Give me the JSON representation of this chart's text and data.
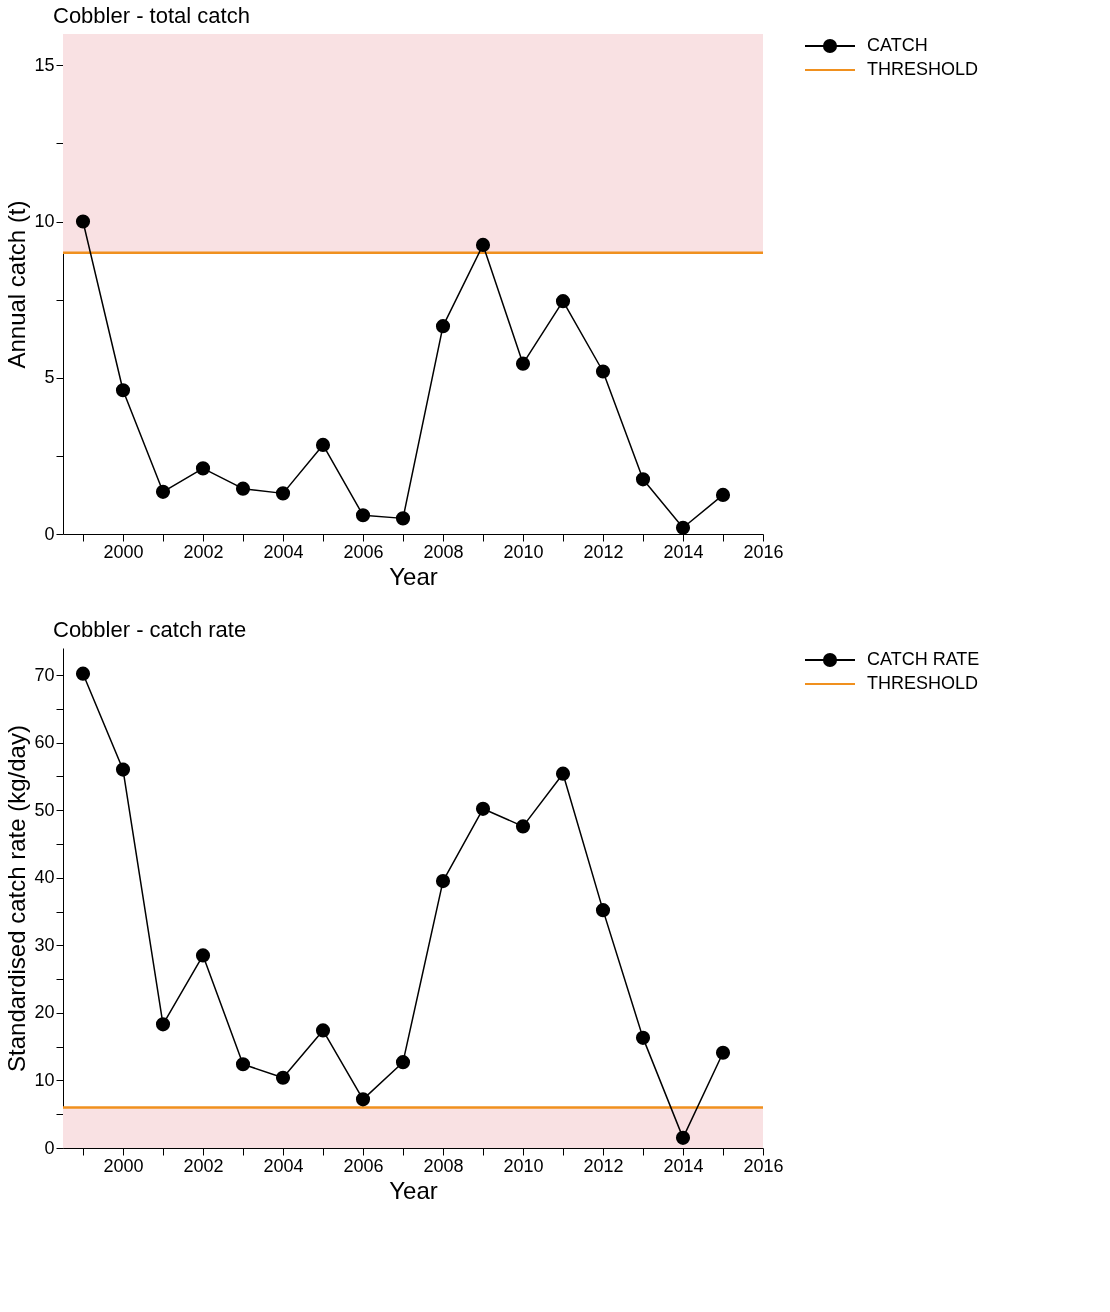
{
  "chart_data": [
    {
      "type": "line",
      "title": "Cobbler - total catch",
      "xlabel": "Year",
      "ylabel": "Annual catch (t)",
      "x": [
        1999,
        2000,
        2001,
        2002,
        2003,
        2004,
        2005,
        2006,
        2007,
        2008,
        2009,
        2010,
        2011,
        2012,
        2013,
        2014,
        2015
      ],
      "series": [
        {
          "name": "CATCH",
          "color": "#000000",
          "values": [
            10.0,
            4.6,
            1.35,
            2.1,
            1.45,
            1.3,
            2.85,
            0.6,
            0.5,
            6.65,
            9.25,
            5.45,
            7.45,
            5.2,
            1.75,
            0.2,
            1.25
          ]
        }
      ],
      "xlim": [
        1998.5,
        2016
      ],
      "ylim": [
        0,
        16
      ],
      "xticks": [
        {
          "value": 1999,
          "label": null
        },
        2000,
        {
          "value": 2001,
          "label": null
        },
        2002,
        {
          "value": 2003,
          "label": null
        },
        2004,
        {
          "value": 2005,
          "label": null
        },
        2006,
        {
          "value": 2007,
          "label": null
        },
        2008,
        {
          "value": 2009,
          "label": null
        },
        2010,
        {
          "value": 2011,
          "label": null
        },
        2012,
        {
          "value": 2013,
          "label": null
        },
        2014,
        {
          "value": 2015,
          "label": null
        },
        2016
      ],
      "yticks": [
        0,
        {
          "value": 2.5,
          "label": null
        },
        5,
        {
          "value": 7.5,
          "label": null
        },
        10,
        {
          "value": 12.5,
          "label": null
        },
        15
      ],
      "ref_lines": [
        {
          "axis": "y",
          "value": 9,
          "label": "THRESHOLD",
          "color": "#f0901e"
        }
      ],
      "bands": [
        {
          "axis": "y",
          "from": 9,
          "to": 16,
          "color": "#f9e1e3"
        }
      ],
      "marker": "circle",
      "line_style": "solid",
      "grid": false,
      "legend": "right"
    },
    {
      "type": "line",
      "title": "Cobbler - catch rate",
      "xlabel": "Year",
      "ylabel": "Standardised catch rate (kg/day)",
      "x": [
        1999,
        2000,
        2001,
        2002,
        2003,
        2004,
        2005,
        2006,
        2007,
        2008,
        2009,
        2010,
        2011,
        2012,
        2013,
        2014,
        2015
      ],
      "series": [
        {
          "name": "CATCH RATE",
          "color": "#000000",
          "values": [
            70.2,
            56,
            18.3,
            28.5,
            12.4,
            10.4,
            17.4,
            7.2,
            12.7,
            39.5,
            50.2,
            47.6,
            55.4,
            35.2,
            16.3,
            1.5,
            14.1
          ]
        }
      ],
      "xlim": [
        1998.5,
        2016
      ],
      "ylim": [
        0,
        74
      ],
      "xticks": [
        {
          "value": 1999,
          "label": null
        },
        2000,
        {
          "value": 2001,
          "label": null
        },
        2002,
        {
          "value": 2003,
          "label": null
        },
        2004,
        {
          "value": 2005,
          "label": null
        },
        2006,
        {
          "value": 2007,
          "label": null
        },
        2008,
        {
          "value": 2009,
          "label": null
        },
        2010,
        {
          "value": 2011,
          "label": null
        },
        2012,
        {
          "value": 2013,
          "label": null
        },
        2014,
        {
          "value": 2015,
          "label": null
        },
        2016
      ],
      "yticks": [
        0,
        {
          "value": 5,
          "label": null
        },
        10,
        {
          "value": 15,
          "label": null
        },
        20,
        {
          "value": 25,
          "label": null
        },
        30,
        {
          "value": 35,
          "label": null
        },
        40,
        {
          "value": 45,
          "label": null
        },
        50,
        {
          "value": 55,
          "label": null
        },
        60,
        {
          "value": 65,
          "label": null
        },
        70
      ],
      "ref_lines": [
        {
          "axis": "y",
          "value": 6,
          "label": "THRESHOLD",
          "color": "#f0901e"
        }
      ],
      "bands": [
        {
          "axis": "y",
          "from": 0,
          "to": 6,
          "color": "#f9e1e3"
        }
      ],
      "marker": "circle",
      "line_style": "solid",
      "grid": false,
      "legend": "right"
    }
  ]
}
